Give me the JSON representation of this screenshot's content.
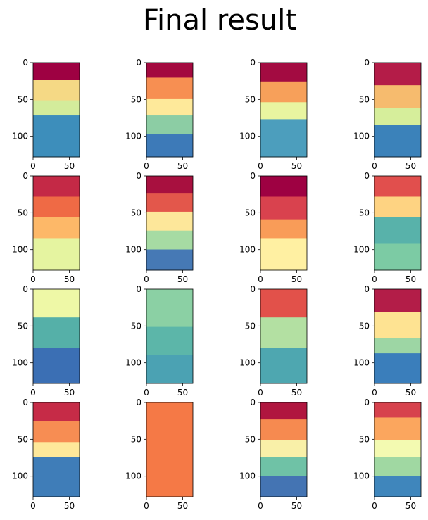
{
  "title": "Final result",
  "chart_data": {
    "type": "heatmap",
    "title": "Final result",
    "layout": {
      "rows": 4,
      "cols": 4
    },
    "x_ticks": [
      0,
      50
    ],
    "y_ticks": [
      0,
      50,
      100
    ],
    "x_tick_labels": [
      "0",
      "50"
    ],
    "y_tick_labels": [
      "0",
      "50",
      "100"
    ],
    "xlim": [
      0,
      64
    ],
    "ylim": [
      128,
      0
    ],
    "colormap": "Spectral",
    "panels": [
      {
        "bands": [
          [
            "#9e0142",
            0.18
          ],
          [
            "#f5d985",
            0.4
          ],
          [
            "#d3ec9b",
            0.56
          ],
          [
            "#3d8ebb",
            1.0
          ]
        ]
      },
      {
        "bands": [
          [
            "#a3093f",
            0.16
          ],
          [
            "#f78f52",
            0.38
          ],
          [
            "#fee99a",
            0.56
          ],
          [
            "#8ccda4",
            0.76
          ],
          [
            "#3d7ab8",
            1.0
          ]
        ]
      },
      {
        "bands": [
          [
            "#a30b41",
            0.2
          ],
          [
            "#f7a05a",
            0.42
          ],
          [
            "#e9f5a0",
            0.6
          ],
          [
            "#4c9ebd",
            1.0
          ]
        ]
      },
      {
        "bands": [
          [
            "#b41c48",
            0.24
          ],
          [
            "#f6bb6e",
            0.48
          ],
          [
            "#d6ee9b",
            0.66
          ],
          [
            "#3b82ba",
            1.0
          ]
        ]
      },
      {
        "bands": [
          [
            "#c42946",
            0.22
          ],
          [
            "#ef6a45",
            0.44
          ],
          [
            "#fdb868",
            0.66
          ],
          [
            "#e5f4a0",
            1.0
          ]
        ]
      },
      {
        "bands": [
          [
            "#a8103f",
            0.18
          ],
          [
            "#e3574b",
            0.38
          ],
          [
            "#fde79a",
            0.58
          ],
          [
            "#a6dba3",
            0.78
          ],
          [
            "#4679b5",
            1.0
          ]
        ]
      },
      {
        "bands": [
          [
            "#9e0142",
            0.22
          ],
          [
            "#d9424e",
            0.46
          ],
          [
            "#f99c58",
            0.66
          ],
          [
            "#fff0a2",
            1.0
          ]
        ]
      },
      {
        "bands": [
          [
            "#e14f4d",
            0.22
          ],
          [
            "#fed382",
            0.44
          ],
          [
            "#58b2aa",
            0.72
          ],
          [
            "#7ccba4",
            1.0
          ]
        ]
      },
      {
        "bands": [
          [
            "#eef8a6",
            0.3
          ],
          [
            "#55b0a8",
            0.62
          ],
          [
            "#3b6fb4",
            1.0
          ]
        ]
      },
      {
        "bands": [
          [
            "#8bd0a4",
            0.4
          ],
          [
            "#5cb6a9",
            0.7
          ],
          [
            "#4ba2b3",
            1.0
          ]
        ]
      },
      {
        "bands": [
          [
            "#e2514a",
            0.3
          ],
          [
            "#b3e0a2",
            0.62
          ],
          [
            "#4ea7b0",
            1.0
          ]
        ]
      },
      {
        "bands": [
          [
            "#b31d48",
            0.24
          ],
          [
            "#fee392",
            0.52
          ],
          [
            "#9dd6a4",
            0.68
          ],
          [
            "#3a7ebb",
            1.0
          ]
        ]
      },
      {
        "bands": [
          [
            "#c62b47",
            0.2
          ],
          [
            "#f78d53",
            0.42
          ],
          [
            "#fee89a",
            0.58
          ],
          [
            "#3f7db8",
            1.0
          ]
        ]
      },
      {
        "bands": [
          [
            "#f57946",
            1.0
          ]
        ]
      },
      {
        "bands": [
          [
            "#b0163f",
            0.18
          ],
          [
            "#f68a50",
            0.4
          ],
          [
            "#f9f0a8",
            0.58
          ],
          [
            "#6fc2a6",
            0.78
          ],
          [
            "#4474b3",
            1.0
          ]
        ]
      },
      {
        "bands": [
          [
            "#d7424d",
            0.16
          ],
          [
            "#fba65e",
            0.4
          ],
          [
            "#f3fab1",
            0.58
          ],
          [
            "#a0d8a2",
            0.78
          ],
          [
            "#3f86bc",
            1.0
          ]
        ]
      }
    ]
  }
}
